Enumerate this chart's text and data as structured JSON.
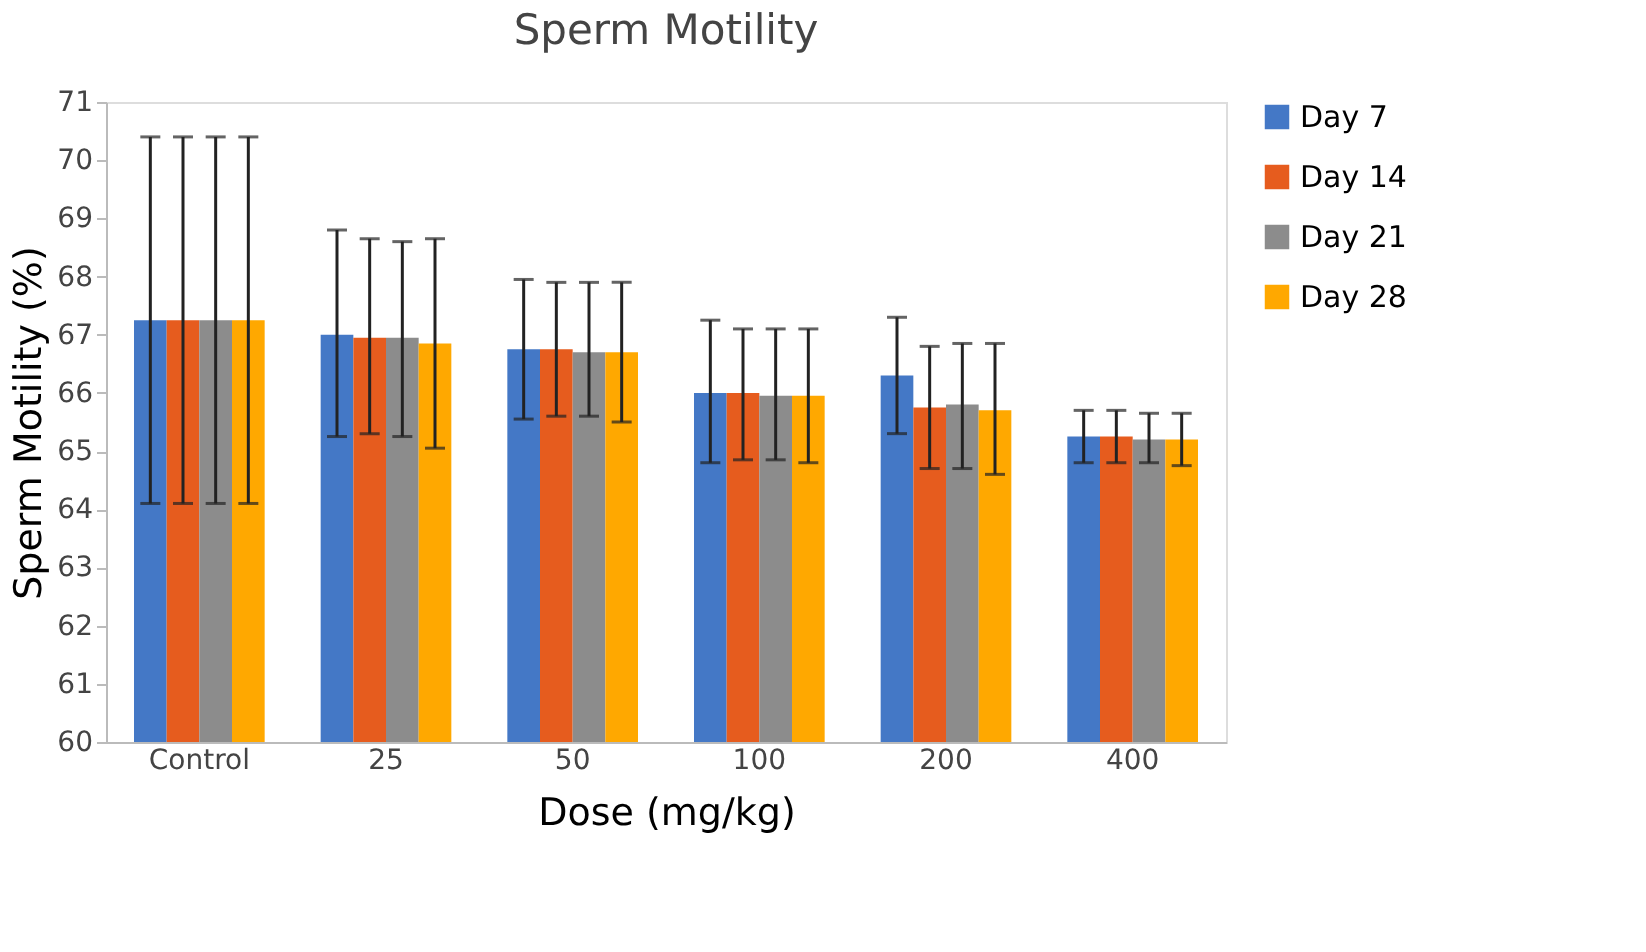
{
  "chart_data": {
    "type": "bar",
    "title": "Sperm Motility",
    "xlabel": "Dose (mg/kg)",
    "ylabel": "Sperm Motility (%)",
    "categories": [
      "Control",
      "25",
      "50",
      "100",
      "200",
      "400"
    ],
    "series": [
      {
        "name": "Day 7",
        "color": "#4478c6",
        "values": [
          67.25,
          67.0,
          66.75,
          66.0,
          66.3,
          65.25
        ],
        "errors": [
          [
            64.1,
            70.4
          ],
          [
            65.25,
            68.8
          ],
          [
            65.55,
            67.95
          ],
          [
            64.8,
            67.25
          ],
          [
            65.3,
            67.3
          ],
          [
            64.8,
            65.7
          ]
        ]
      },
      {
        "name": "Day 14",
        "color": "#e65c1e",
        "values": [
          67.25,
          66.95,
          66.75,
          66.0,
          65.75,
          65.25
        ],
        "errors": [
          [
            64.1,
            70.4
          ],
          [
            65.3,
            68.65
          ],
          [
            65.6,
            67.9
          ],
          [
            64.85,
            67.1
          ],
          [
            64.7,
            66.8
          ],
          [
            64.8,
            65.7
          ]
        ]
      },
      {
        "name": "Day 21",
        "color": "#8c8c8c",
        "values": [
          67.25,
          66.95,
          66.7,
          65.95,
          65.8,
          65.2
        ],
        "errors": [
          [
            64.1,
            70.4
          ],
          [
            65.25,
            68.6
          ],
          [
            65.6,
            67.9
          ],
          [
            64.85,
            67.1
          ],
          [
            64.7,
            66.85
          ],
          [
            64.8,
            65.65
          ]
        ]
      },
      {
        "name": "Day 28",
        "color": "#ffa800",
        "values": [
          67.25,
          66.85,
          66.7,
          65.95,
          65.7,
          65.2
        ],
        "errors": [
          [
            64.1,
            70.4
          ],
          [
            65.05,
            68.65
          ],
          [
            65.5,
            67.9
          ],
          [
            64.8,
            67.1
          ],
          [
            64.6,
            66.85
          ],
          [
            64.75,
            65.65
          ]
        ]
      }
    ],
    "ylim": [
      60,
      71
    ],
    "yticks": [
      60,
      61,
      62,
      63,
      64,
      65,
      66,
      67,
      68,
      69,
      70,
      71
    ],
    "grid": false,
    "legend": "right"
  }
}
